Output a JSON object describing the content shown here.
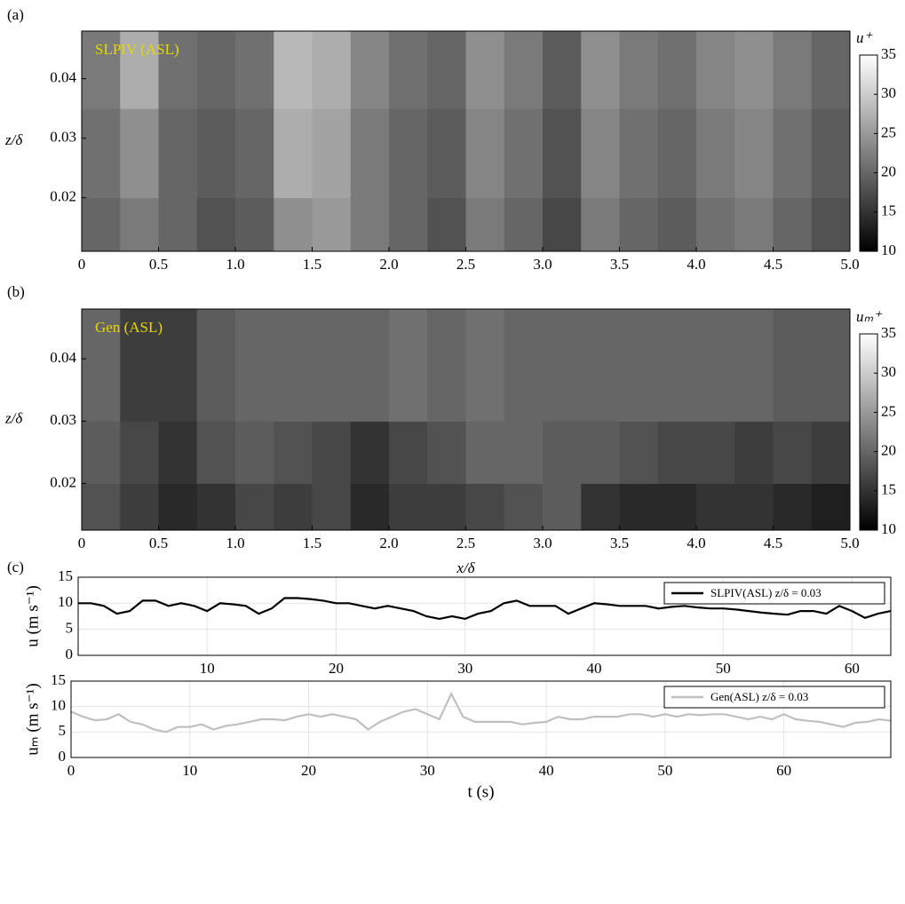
{
  "chart_data": [
    {
      "type": "heatmap",
      "panel_label": "(a)",
      "annotation": "SLPIV (ASL)",
      "annotation_color": "#e6d800",
      "ylabel": "z/δ",
      "x": [
        0,
        0.25,
        0.5,
        0.75,
        1,
        1.25,
        1.5,
        1.75,
        2,
        2.25,
        2.5,
        2.75,
        3,
        3.25,
        3.5,
        3.75,
        4,
        4.25,
        4.5,
        4.75,
        5
      ],
      "y": [
        0.011,
        0.02,
        0.035,
        0.048
      ],
      "z": [
        [
          20,
          22,
          20,
          18,
          19,
          24,
          25,
          22,
          20,
          18,
          22,
          20,
          17,
          22,
          20,
          19,
          21,
          22,
          20,
          18
        ],
        [
          21,
          24,
          20,
          19,
          20,
          27,
          26,
          22,
          20,
          19,
          23,
          21,
          18,
          23,
          21,
          20,
          22,
          23,
          21,
          19
        ],
        [
          22,
          27,
          21,
          20,
          21,
          28,
          27,
          23,
          21,
          20,
          24,
          22,
          19,
          24,
          22,
          21,
          23,
          24,
          22,
          20
        ]
      ],
      "xlim": [
        0,
        5
      ],
      "ylim": [
        0.011,
        0.048
      ],
      "xticks": [
        0,
        0.5,
        {
          "value": 1,
          "label": "1.0"
        },
        1.5,
        {
          "value": 2,
          "label": "2.0"
        },
        2.5,
        {
          "value": 3,
          "label": "3.0"
        },
        3.5,
        {
          "value": 4,
          "label": "4.0"
        },
        4.5,
        {
          "value": 5,
          "label": "5.0"
        }
      ],
      "yticks": [
        0.02,
        0.03,
        0.04
      ],
      "colormap": "gray",
      "clim": [
        10,
        35
      ],
      "cticks": [
        10,
        15,
        20,
        25,
        30,
        35
      ],
      "colorbar_label": "u⁺"
    },
    {
      "type": "heatmap",
      "panel_label": "(b)",
      "annotation": "Gen (ASL)",
      "annotation_color": "#e6d800",
      "ylabel": "z/δ",
      "xlabel": "x/δ",
      "x": [
        0,
        0.25,
        0.5,
        0.75,
        1,
        1.25,
        1.5,
        1.75,
        2,
        2.25,
        2.5,
        2.75,
        3,
        3.25,
        3.5,
        3.75,
        4,
        4.25,
        4.5,
        4.75,
        5
      ],
      "y": [
        0.0125,
        0.02,
        0.03,
        0.048
      ],
      "z": [
        [
          18,
          16,
          14,
          15,
          17,
          16,
          17,
          14,
          16,
          16,
          17,
          18,
          19,
          15,
          14,
          14,
          15,
          15,
          14,
          13
        ],
        [
          19,
          17,
          15,
          18,
          19,
          18,
          17,
          15,
          17,
          18,
          20,
          20,
          19,
          19,
          18,
          17,
          17,
          16,
          17,
          16
        ],
        [
          20,
          16,
          16,
          19,
          20,
          20,
          20,
          20,
          21,
          20,
          21,
          20,
          20,
          20,
          20,
          20,
          20,
          20,
          19,
          19
        ]
      ],
      "xlim": [
        0,
        5
      ],
      "ylim": [
        0.0125,
        0.048
      ],
      "xticks": [
        0,
        0.5,
        {
          "value": 1,
          "label": "1.0"
        },
        1.5,
        {
          "value": 2,
          "label": "2.0"
        },
        2.5,
        {
          "value": 3,
          "label": "3.0"
        },
        3.5,
        {
          "value": 4,
          "label": "4.0"
        },
        4.5,
        {
          "value": 5,
          "label": "5.0"
        }
      ],
      "yticks": [
        0.02,
        0.03,
        0.04
      ],
      "colormap": "gray",
      "clim": [
        10,
        35
      ],
      "cticks": [
        10,
        15,
        20,
        25,
        30,
        35
      ],
      "colorbar_label": "uₘ⁺"
    },
    {
      "type": "line",
      "panel_label": "(c)",
      "ylabel": "u (m s⁻¹)",
      "x": [
        0,
        1,
        2,
        3,
        4,
        5,
        6,
        7,
        8,
        9,
        10,
        11,
        12,
        13,
        14,
        15,
        16,
        17,
        18,
        19,
        20,
        21,
        22,
        23,
        24,
        25,
        26,
        27,
        28,
        29,
        30,
        31,
        32,
        33,
        34,
        35,
        36,
        37,
        38,
        39,
        40,
        41,
        42,
        43,
        44,
        45,
        46,
        47,
        48,
        49,
        50,
        51,
        52,
        53,
        54,
        55,
        56,
        57,
        58,
        59,
        60,
        61,
        62,
        63
      ],
      "series": [
        {
          "name": "SLPIV(ASL) z/δ = 0.03",
          "color": "#000000",
          "values": [
            10,
            10,
            9.5,
            8,
            8.5,
            10.5,
            10.5,
            9.5,
            10,
            9.5,
            8.5,
            10,
            9.8,
            9.5,
            8,
            9,
            11,
            11,
            10.8,
            10.5,
            10,
            10,
            9.5,
            9,
            9.5,
            9,
            8.5,
            7.5,
            7,
            7.5,
            7,
            8,
            8.5,
            10,
            10.5,
            9.5,
            9.5,
            9.5,
            8,
            9,
            10,
            9.8,
            9.5,
            9.5,
            9.5,
            9,
            9.3,
            9.5,
            9.2,
            9,
            9,
            8.8,
            8.5,
            8.2,
            8,
            7.8,
            8.5,
            8.5,
            8,
            9.5,
            8.5,
            7.2,
            8,
            8.5
          ]
        }
      ],
      "xlim": [
        0,
        63
      ],
      "ylim": [
        0,
        15
      ],
      "xticks": [
        10,
        20,
        30,
        40,
        50,
        60
      ],
      "yticks": [
        0,
        5,
        10,
        15
      ],
      "grid": true,
      "legend": "upper right"
    },
    {
      "type": "line",
      "ylabel": "uₘ (m s⁻¹)",
      "xlabel": "t (s)",
      "x": [
        0,
        1,
        2,
        3,
        4,
        5,
        6,
        7,
        8,
        9,
        10,
        11,
        12,
        13,
        14,
        15,
        16,
        17,
        18,
        19,
        20,
        21,
        22,
        23,
        24,
        25,
        26,
        27,
        28,
        29,
        30,
        31,
        32,
        33,
        34,
        35,
        36,
        37,
        38,
        39,
        40,
        41,
        42,
        43,
        44,
        45,
        46,
        47,
        48,
        49,
        50,
        51,
        52,
        53,
        54,
        55,
        56,
        57,
        58,
        59,
        60,
        61,
        62,
        63,
        64,
        65,
        66,
        67,
        68,
        69
      ],
      "series": [
        {
          "name": "Gen(ASL) z/δ = 0.03",
          "color": "#c0c0c0",
          "values": [
            9,
            8,
            7.3,
            7.5,
            8.5,
            7,
            6.5,
            5.5,
            5,
            6,
            6,
            6.5,
            5.5,
            6.2,
            6.5,
            7,
            7.5,
            7.5,
            7.3,
            8,
            8.5,
            8,
            8.5,
            8,
            7.5,
            5.5,
            7,
            8,
            9,
            9.5,
            8.5,
            7.5,
            12.5,
            8,
            7,
            7,
            7,
            7,
            6.5,
            6.8,
            7,
            8,
            7.5,
            7.5,
            8,
            8,
            8,
            8.5,
            8.5,
            8,
            8.5,
            8,
            8.5,
            8.3,
            8.5,
            8.5,
            8,
            7.5,
            8,
            7.5,
            8.5,
            7.5,
            7.2,
            7,
            6.5,
            6,
            6.8,
            7,
            7.5,
            7.2
          ]
        }
      ],
      "xlim": [
        0,
        69
      ],
      "ylim": [
        0,
        15
      ],
      "xticks": [
        0,
        10,
        20,
        30,
        40,
        50,
        60
      ],
      "yticks": [
        0,
        5,
        10,
        15
      ],
      "grid": true,
      "legend": "upper right"
    }
  ]
}
